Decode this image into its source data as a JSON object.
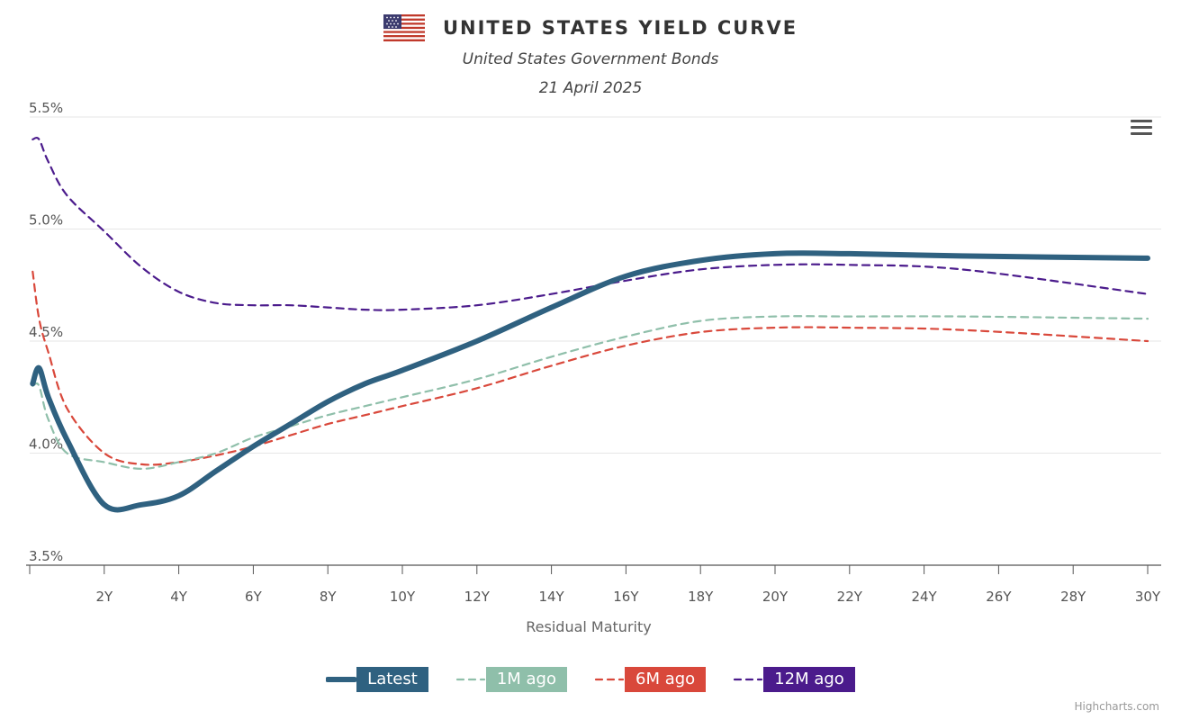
{
  "header": {
    "title": "UNITED STATES YIELD CURVE",
    "subtitle": "United States Government Bonds",
    "date": "21 April 2025",
    "flag_icon": "us-flag-icon"
  },
  "menu": {
    "icon": "hamburger-menu-icon"
  },
  "credits": "Highcharts.com",
  "chart_data": {
    "type": "line",
    "title": "UNITED STATES YIELD CURVE",
    "subtitle": "United States Government Bonds",
    "xlabel": "Residual Maturity",
    "ylabel": "",
    "xlim": [
      0,
      30
    ],
    "ylim": [
      3.5,
      5.5
    ],
    "x_ticks": [
      2,
      4,
      6,
      8,
      10,
      12,
      14,
      16,
      18,
      20,
      22,
      24,
      26,
      28,
      30
    ],
    "x_tick_labels": [
      "2Y",
      "4Y",
      "6Y",
      "8Y",
      "10Y",
      "12Y",
      "14Y",
      "16Y",
      "18Y",
      "20Y",
      "22Y",
      "24Y",
      "26Y",
      "28Y",
      "30Y"
    ],
    "y_ticks": [
      3.5,
      4.0,
      4.5,
      5.0,
      5.5
    ],
    "y_tick_labels": [
      "3.5%",
      "4.0%",
      "4.5%",
      "5.0%",
      "5.5%"
    ],
    "grid": true,
    "legend": "bottom-center",
    "x": [
      0.08,
      0.25,
      0.5,
      1,
      2,
      3,
      4,
      5,
      6,
      7,
      8,
      9,
      10,
      12,
      14,
      16,
      18,
      20,
      22,
      25,
      30
    ],
    "series": [
      {
        "name": "Latest",
        "color": "#2f6180",
        "dash": "solid",
        "values": [
          4.31,
          4.38,
          4.25,
          4.06,
          3.77,
          3.77,
          3.81,
          3.92,
          4.03,
          4.13,
          4.23,
          4.31,
          4.37,
          4.5,
          4.65,
          4.79,
          4.86,
          4.89,
          4.89,
          4.88,
          4.87
        ]
      },
      {
        "name": "1M ago",
        "color": "#8fbfaa",
        "dash": "dashed",
        "values": [
          4.3,
          4.3,
          4.15,
          4.0,
          3.96,
          3.93,
          3.96,
          4.0,
          4.07,
          4.12,
          4.17,
          4.21,
          4.25,
          4.33,
          4.43,
          4.52,
          4.59,
          4.61,
          4.61,
          4.61,
          4.6
        ]
      },
      {
        "name": "6M ago",
        "color": "#d9483b",
        "dash": "dashed",
        "values": [
          4.81,
          4.6,
          4.45,
          4.2,
          4.0,
          3.95,
          3.96,
          3.99,
          4.03,
          4.08,
          4.13,
          4.17,
          4.21,
          4.29,
          4.39,
          4.48,
          4.54,
          4.56,
          4.56,
          4.55,
          4.5
        ]
      },
      {
        "name": "12M ago",
        "color": "#4b1b8c",
        "dash": "dashed",
        "values": [
          5.4,
          5.4,
          5.3,
          5.15,
          4.99,
          4.83,
          4.72,
          4.67,
          4.66,
          4.66,
          4.65,
          4.64,
          4.64,
          4.66,
          4.71,
          4.77,
          4.82,
          4.84,
          4.84,
          4.82,
          4.71
        ]
      }
    ]
  }
}
